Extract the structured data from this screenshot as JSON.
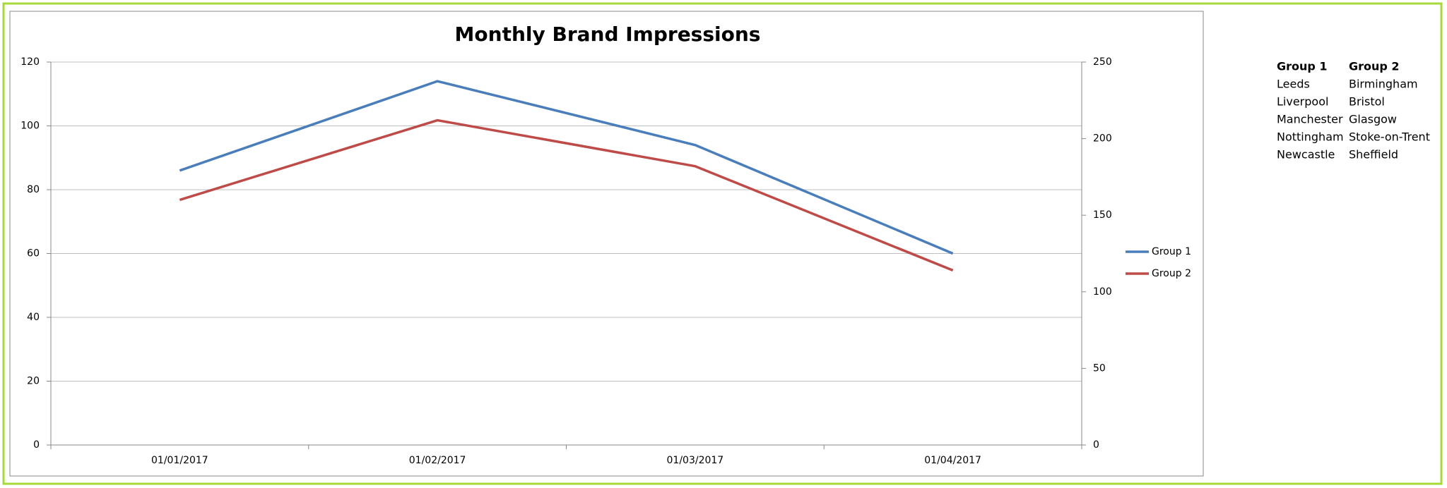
{
  "chart_data": {
    "type": "line",
    "title": "Monthly Brand Impressions",
    "categories": [
      "01/01/2017",
      "01/02/2017",
      "01/03/2017",
      "01/04/2017"
    ],
    "series": [
      {
        "name": "Group 1",
        "color": "#4a7ebb",
        "values": [
          86,
          114,
          94,
          60
        ]
      },
      {
        "name": "Group 2",
        "color": "#be4b48",
        "values": [
          160,
          212,
          182,
          114
        ],
        "axis": "y2"
      }
    ],
    "ylim": [
      0,
      120
    ],
    "yticks": [
      0,
      20,
      40,
      60,
      80,
      100,
      120
    ],
    "y2lim": [
      0,
      250
    ],
    "y2ticks": [
      0,
      50,
      100,
      150,
      200,
      250
    ],
    "grid": true,
    "legend": "right"
  },
  "table": {
    "header": [
      "Group 1",
      "Group 2"
    ],
    "rows": [
      [
        "Leeds",
        "Birmingham"
      ],
      [
        "Liverpool",
        "Bristol"
      ],
      [
        "Manchester",
        "Glasgow"
      ],
      [
        "Nottingham",
        "Stoke-on-Trent"
      ],
      [
        "Newcastle",
        "Sheffield"
      ]
    ]
  }
}
